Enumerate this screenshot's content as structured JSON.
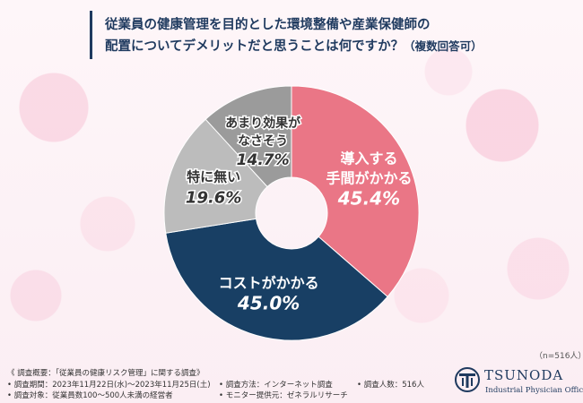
{
  "title": {
    "line1": "従業員の健康管理を目的とした環境整備や産業保健師の",
    "line2_main": "配置についてデメリットだと思うことは何ですか？",
    "line2_note": "（複数回答可）"
  },
  "chart_data": {
    "type": "pie",
    "title": "従業員の健康管理を目的とした環境整備や産業保健師の配置についてデメリットだと思うことは何ですか？（複数回答可）",
    "slices": [
      {
        "label_lines": [
          "導入する",
          "手間がかかる"
        ],
        "value": 45.4,
        "display": "45.4%",
        "color": "#ea7686"
      },
      {
        "label_lines": [
          "コストがかかる"
        ],
        "value": 45.0,
        "display": "45.0%",
        "color": "#183f64"
      },
      {
        "label_lines": [
          "特に無い"
        ],
        "value": 19.6,
        "display": "19.6%",
        "color": "#bcbcbc"
      },
      {
        "label_lines": [
          "あまり効果が",
          "なさそう"
        ],
        "value": 14.7,
        "display": "14.7%",
        "color": "#9b9b9b"
      }
    ],
    "sample_note": "（n=516人）"
  },
  "footer": {
    "header": "《 調査概要：「従業員の健康リスク管理」に関する調査》",
    "period": "• 調査期間：2023年11月22日(水)〜2023年11月25日(土)",
    "target": "• 調査対象：従業員数100〜500人未満の経営者",
    "method": "• 調査方法：インターネット調査",
    "monitor": "• モニター提供元：ゼネラルリサーチ",
    "count": "• 調査人数：516人"
  },
  "brand": {
    "name": "TSUNODA",
    "sub": "Industrial Physician Office",
    "color": "#1f3a5f"
  }
}
